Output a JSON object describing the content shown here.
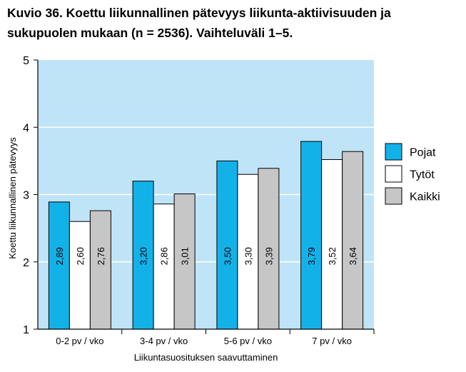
{
  "title": "Kuvio 36. Koettu liikunnallinen pätevyys liikunta-aktiivisuuden ja sukupuolen mukaan (n = 2536). Vaihteluväli 1–5.",
  "colors": {
    "plot_background": "#c0e4f7",
    "gridline": "#ffffff",
    "Pojat": "#12b2e9",
    "Tytöt": "#ffffff",
    "Kaikki": "#c6c6c6",
    "outline": "#000000"
  },
  "chart_data": {
    "type": "bar",
    "categories": [
      "0-2 pv / vko",
      "3-4 pv / vko",
      "5-6 pv / vko",
      "7 pv / vko"
    ],
    "series": [
      {
        "name": "Pojat",
        "values": [
          2.89,
          3.2,
          3.5,
          3.79
        ],
        "labels": [
          "2,89",
          "3,20",
          "3,50",
          "3,79"
        ]
      },
      {
        "name": "Tytöt",
        "values": [
          2.6,
          2.86,
          3.3,
          3.52
        ],
        "labels": [
          "2,60",
          "2,86",
          "3,30",
          "3,52"
        ]
      },
      {
        "name": "Kaikki",
        "values": [
          2.76,
          3.01,
          3.39,
          3.64
        ],
        "labels": [
          "2,76",
          "3,01",
          "3,39",
          "3,64"
        ]
      }
    ],
    "xlabel": "Liikuntasuosituksen saavuttaminen",
    "ylabel": "Koettu liikunnallinen pätevyys",
    "ylim": [
      1,
      5
    ],
    "yticks": [
      "1",
      "2",
      "3",
      "4",
      "5"
    ],
    "grid": true,
    "legend_position": "right"
  }
}
